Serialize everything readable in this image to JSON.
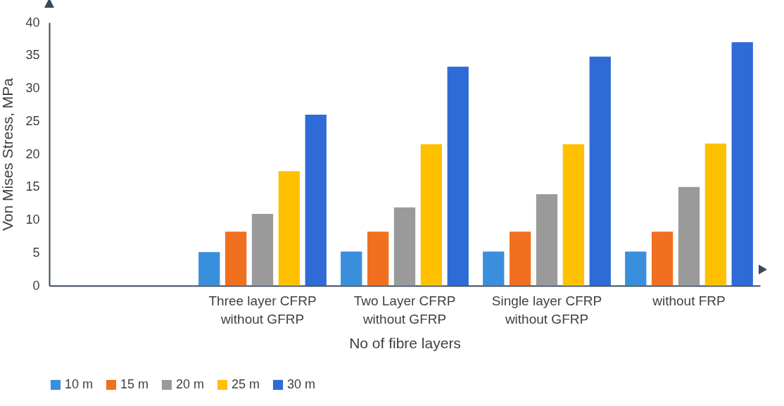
{
  "chart_data": {
    "type": "bar",
    "xlabel": "No of fibre layers",
    "ylabel": "Von Mises Stress, MPa",
    "categories": [
      null,
      "Three layer CFRP\nwithout GFRP",
      "Two Layer CFRP\nwithout GFRP",
      "Single layer CFRP\nwithout GFRP",
      "without  FRP"
    ],
    "series": [
      {
        "name": "10 m",
        "color": "#3a8fdc",
        "values": [
          null,
          5.1,
          5.2,
          5.2,
          5.2
        ]
      },
      {
        "name": "15 m",
        "color": "#f07020",
        "values": [
          null,
          8.2,
          8.2,
          8.2,
          8.2
        ]
      },
      {
        "name": "20 m",
        "color": "#9a9a9a",
        "values": [
          null,
          10.9,
          11.9,
          13.9,
          15.0
        ]
      },
      {
        "name": "25 m",
        "color": "#ffc000",
        "values": [
          null,
          17.4,
          21.5,
          21.5,
          21.6
        ]
      },
      {
        "name": "30 m",
        "color": "#2e6bd6",
        "values": [
          null,
          26.0,
          33.3,
          34.8,
          37.0
        ]
      }
    ],
    "ylim": [
      0,
      40
    ],
    "yticks": [
      0,
      5,
      10,
      15,
      20,
      25,
      30,
      35,
      40
    ],
    "grid": false,
    "legend": "bottom"
  }
}
